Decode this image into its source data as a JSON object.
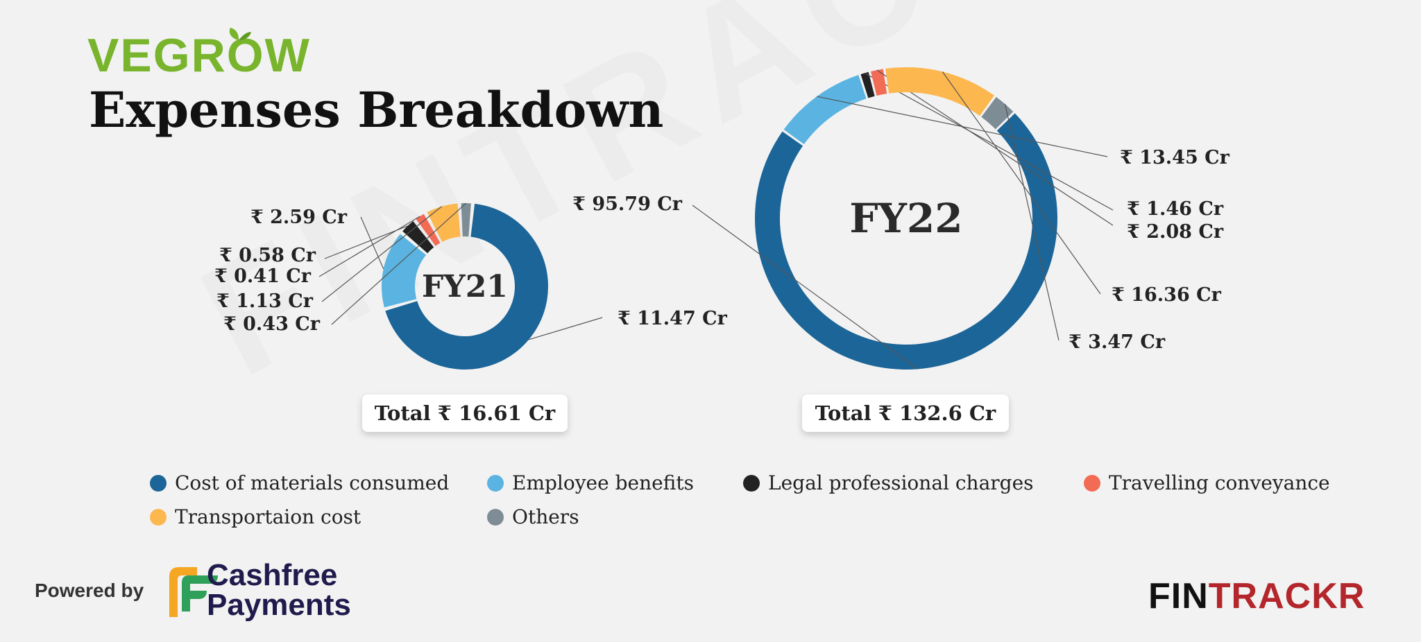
{
  "brand": {
    "name": "VEGROW"
  },
  "watermark": "FINTRACKR",
  "header": {
    "title": "Expenses Breakdown"
  },
  "colors": {
    "cost_of_materials": "#1c6598",
    "employee_benefits": "#5ab3e0",
    "legal_professional": "#222222",
    "travelling": "#f26b55",
    "transportation": "#fcb74f",
    "others": "#7e8c96"
  },
  "chart_data": [
    {
      "type": "pie",
      "donut": true,
      "center_label": "FY21",
      "total": "Total ₹ 16.61 Cr",
      "categories": [
        "Cost of materials consumed",
        "Employee benefits",
        "Legal professional charges",
        "Travelling conveyance",
        "Transportaion cost",
        "Others"
      ],
      "values": [
        11.47,
        2.59,
        0.58,
        0.41,
        1.13,
        0.43
      ],
      "labels": [
        "₹ 11.47 Cr",
        "₹ 2.59 Cr",
        "₹ 0.58 Cr",
        "₹ 0.41 Cr",
        "₹ 1.13 Cr",
        "₹ 0.43 Cr"
      ],
      "unit": "Cr"
    },
    {
      "type": "pie",
      "donut": true,
      "center_label": "FY22",
      "total": "Total ₹ 132.6 Cr",
      "categories": [
        "Cost of materials consumed",
        "Employee benefits",
        "Legal professional charges",
        "Travelling conveyance",
        "Transportaion cost",
        "Others"
      ],
      "values": [
        95.79,
        13.45,
        1.46,
        2.08,
        16.36,
        3.47
      ],
      "labels": [
        "₹ 95.79 Cr",
        "₹ 13.45 Cr",
        "₹ 1.46 Cr",
        "₹ 2.08 Cr",
        "₹ 16.36 Cr",
        "₹ 3.47 Cr"
      ],
      "unit": "Cr"
    }
  ],
  "legend": [
    {
      "label": "Cost of materials consumed",
      "color": "#1c6598"
    },
    {
      "label": "Employee benefits",
      "color": "#5ab3e0"
    },
    {
      "label": "Legal professional charges",
      "color": "#222222"
    },
    {
      "label": "Travelling conveyance",
      "color": "#f26b55"
    },
    {
      "label": "Transportaion cost",
      "color": "#fcb74f"
    },
    {
      "label": "Others",
      "color": "#7e8c96"
    }
  ],
  "footer": {
    "powered_by": "Powered by",
    "cashfree_line1": "Cashfree",
    "cashfree_line2": "Payments",
    "fintrackr_a": "FIN",
    "fintrackr_b": "TRACKR"
  }
}
